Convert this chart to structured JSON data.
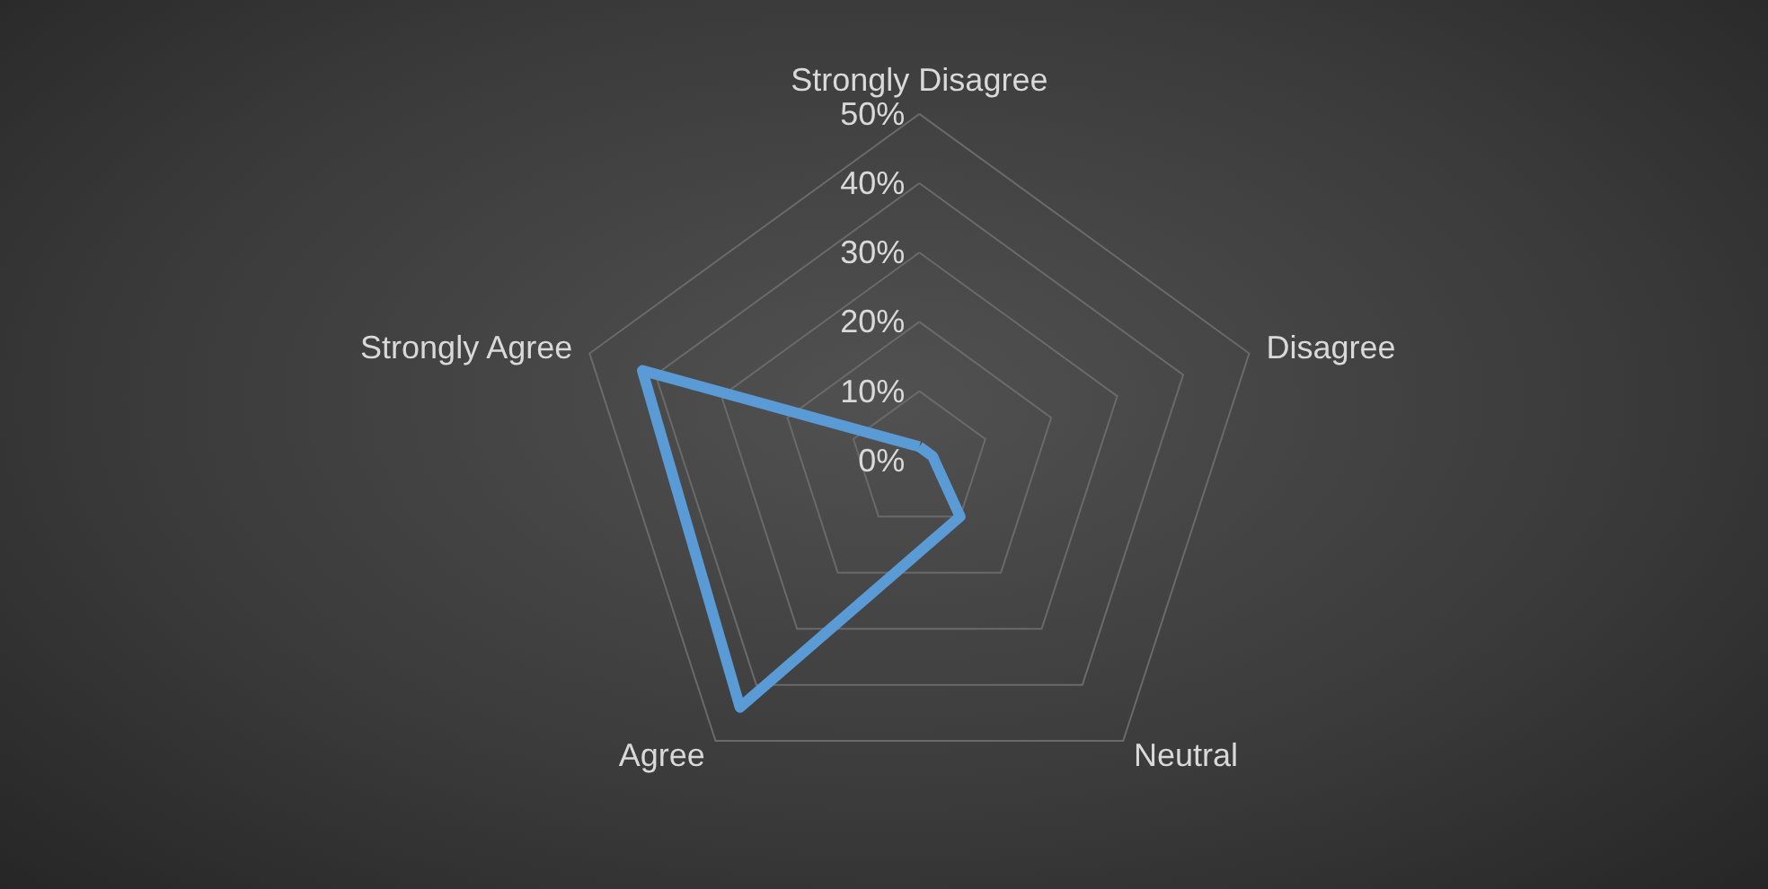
{
  "chart_data": {
    "type": "radar",
    "categories": [
      "Strongly Disagree",
      "Disagree",
      "Neutral",
      "Agree",
      "Strongly Agree"
    ],
    "series": [
      {
        "color": "#5b9bd5",
        "values": [
          2,
          2,
          10,
          44,
          42
        ]
      }
    ],
    "ylim": [
      0,
      50
    ],
    "yticks": [
      {
        "value": 0,
        "label": "0%"
      },
      {
        "value": 10,
        "label": "10%"
      },
      {
        "value": 20,
        "label": "20%"
      },
      {
        "value": 30,
        "label": "30%"
      },
      {
        "value": 40,
        "label": "40%"
      },
      {
        "value": 50,
        "label": "50%"
      }
    ],
    "grid": true,
    "marker": "none",
    "line_style": "solid"
  }
}
